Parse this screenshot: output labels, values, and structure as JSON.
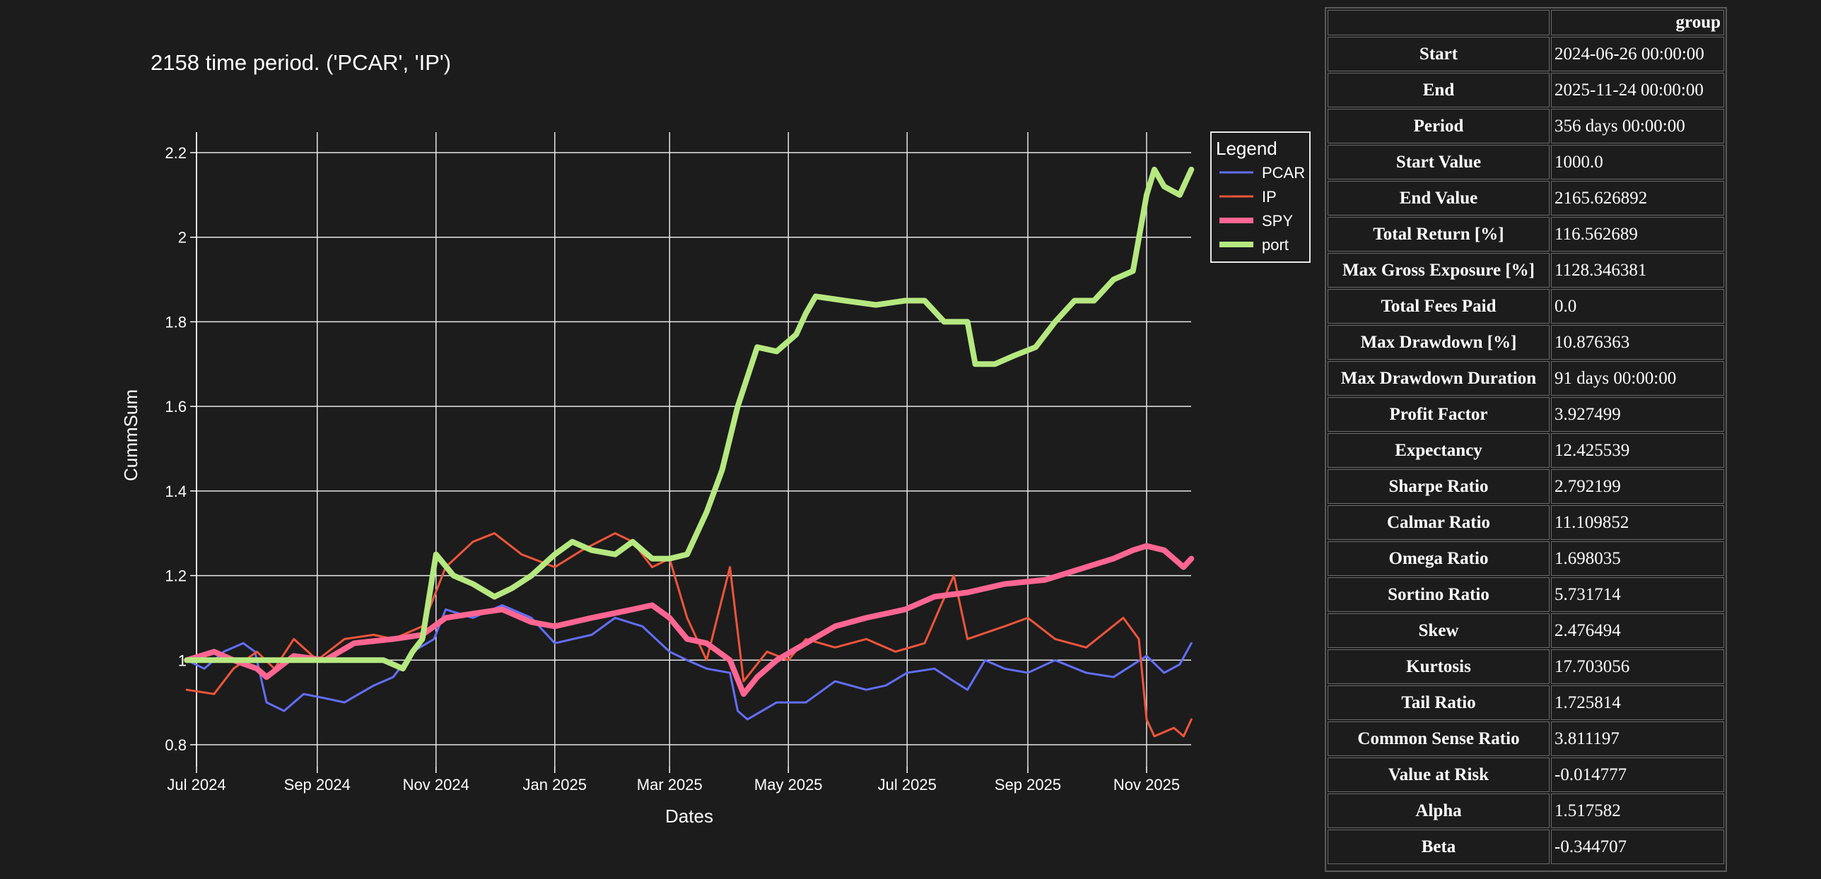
{
  "chart_data": {
    "type": "line",
    "title": "2158 time period. ('PCAR', 'IP')",
    "xlabel": "Dates",
    "ylabel": "CummSum",
    "ylim": [
      0.76,
      2.25
    ],
    "xlim": [
      "2024-07-01",
      "2025-11-30"
    ],
    "x_ticks": [
      {
        "date": "2024-07-01",
        "label": "Jul 2024"
      },
      {
        "date": "2024-09-01",
        "label": "Sep 2024"
      },
      {
        "date": "2024-11-01",
        "label": "Nov 2024"
      },
      {
        "date": "2025-01-01",
        "label": "Jan 2025"
      },
      {
        "date": "2025-03-01",
        "label": "Mar 2025"
      },
      {
        "date": "2025-05-01",
        "label": "May 2025"
      },
      {
        "date": "2025-07-01",
        "label": "Jul 2025"
      },
      {
        "date": "2025-09-01",
        "label": "Sep 2025"
      },
      {
        "date": "2025-11-01",
        "label": "Nov 2025"
      }
    ],
    "y_ticks": [
      0.8,
      1,
      1.2,
      1.4,
      1.6,
      1.8,
      2,
      2.2
    ],
    "y_tick_labels": [
      "0.8",
      "1",
      "1.2",
      "1.4",
      "1.6",
      "1.8",
      "2",
      "2.2"
    ],
    "grid": true,
    "legend": {
      "title": "Legend",
      "position": "top-right"
    },
    "series": [
      {
        "name": "PCAR",
        "color": "#636efa",
        "width": 3,
        "points": [
          [
            "2024-06-26",
            1.0
          ],
          [
            "2024-07-05",
            0.98
          ],
          [
            "2024-07-15",
            1.02
          ],
          [
            "2024-07-25",
            1.04
          ],
          [
            "2024-07-31",
            1.02
          ],
          [
            "2024-08-06",
            0.9
          ],
          [
            "2024-08-15",
            0.88
          ],
          [
            "2024-08-25",
            0.92
          ],
          [
            "2024-09-05",
            0.91
          ],
          [
            "2024-09-15",
            0.9
          ],
          [
            "2024-09-30",
            0.94
          ],
          [
            "2024-10-10",
            0.96
          ],
          [
            "2024-10-20",
            1.02
          ],
          [
            "2024-10-31",
            1.05
          ],
          [
            "2024-11-06",
            1.12
          ],
          [
            "2024-11-20",
            1.1
          ],
          [
            "2024-12-05",
            1.13
          ],
          [
            "2024-12-20",
            1.1
          ],
          [
            "2025-01-01",
            1.04
          ],
          [
            "2025-01-20",
            1.06
          ],
          [
            "2025-02-01",
            1.1
          ],
          [
            "2025-02-15",
            1.08
          ],
          [
            "2025-03-01",
            1.02
          ],
          [
            "2025-03-10",
            1.0
          ],
          [
            "2025-03-20",
            0.98
          ],
          [
            "2025-04-01",
            0.97
          ],
          [
            "2025-04-05",
            0.88
          ],
          [
            "2025-04-10",
            0.86
          ],
          [
            "2025-04-25",
            0.9
          ],
          [
            "2025-05-10",
            0.9
          ],
          [
            "2025-05-25",
            0.95
          ],
          [
            "2025-06-10",
            0.93
          ],
          [
            "2025-06-20",
            0.94
          ],
          [
            "2025-07-01",
            0.97
          ],
          [
            "2025-07-15",
            0.98
          ],
          [
            "2025-07-25",
            0.95
          ],
          [
            "2025-08-01",
            0.93
          ],
          [
            "2025-08-10",
            1.0
          ],
          [
            "2025-08-20",
            0.98
          ],
          [
            "2025-09-01",
            0.97
          ],
          [
            "2025-09-15",
            1.0
          ],
          [
            "2025-10-01",
            0.97
          ],
          [
            "2025-10-15",
            0.96
          ],
          [
            "2025-11-01",
            1.01
          ],
          [
            "2025-11-10",
            0.97
          ],
          [
            "2025-11-18",
            0.99
          ],
          [
            "2025-11-24",
            1.04
          ]
        ]
      },
      {
        "name": "IP",
        "color": "#ef553b",
        "width": 3,
        "points": [
          [
            "2024-06-26",
            0.93
          ],
          [
            "2024-07-10",
            0.92
          ],
          [
            "2024-07-20",
            0.98
          ],
          [
            "2024-08-01",
            1.02
          ],
          [
            "2024-08-10",
            0.98
          ],
          [
            "2024-08-20",
            1.05
          ],
          [
            "2024-09-01",
            1.0
          ],
          [
            "2024-09-15",
            1.05
          ],
          [
            "2024-09-30",
            1.06
          ],
          [
            "2024-10-10",
            1.05
          ],
          [
            "2024-10-25",
            1.08
          ],
          [
            "2024-11-06",
            1.22
          ],
          [
            "2024-11-20",
            1.28
          ],
          [
            "2024-12-01",
            1.3
          ],
          [
            "2024-12-15",
            1.25
          ],
          [
            "2025-01-01",
            1.22
          ],
          [
            "2025-01-15",
            1.26
          ],
          [
            "2025-02-01",
            1.3
          ],
          [
            "2025-02-10",
            1.28
          ],
          [
            "2025-02-20",
            1.22
          ],
          [
            "2025-03-01",
            1.24
          ],
          [
            "2025-03-10",
            1.1
          ],
          [
            "2025-03-20",
            1.0
          ],
          [
            "2025-04-01",
            1.22
          ],
          [
            "2025-04-08",
            0.95
          ],
          [
            "2025-04-20",
            1.02
          ],
          [
            "2025-05-01",
            1.0
          ],
          [
            "2025-05-10",
            1.05
          ],
          [
            "2025-05-25",
            1.03
          ],
          [
            "2025-06-10",
            1.05
          ],
          [
            "2025-06-25",
            1.02
          ],
          [
            "2025-07-10",
            1.04
          ],
          [
            "2025-07-25",
            1.2
          ],
          [
            "2025-08-01",
            1.05
          ],
          [
            "2025-08-20",
            1.08
          ],
          [
            "2025-09-01",
            1.1
          ],
          [
            "2025-09-15",
            1.05
          ],
          [
            "2025-10-01",
            1.03
          ],
          [
            "2025-10-20",
            1.1
          ],
          [
            "2025-10-28",
            1.05
          ],
          [
            "2025-11-01",
            0.86
          ],
          [
            "2025-11-05",
            0.82
          ],
          [
            "2025-11-15",
            0.84
          ],
          [
            "2025-11-20",
            0.82
          ],
          [
            "2025-11-24",
            0.86
          ]
        ]
      },
      {
        "name": "SPY",
        "color": "#ff6692",
        "width": 8,
        "points": [
          [
            "2024-06-26",
            1.0
          ],
          [
            "2024-07-10",
            1.02
          ],
          [
            "2024-07-20",
            1.0
          ],
          [
            "2024-08-01",
            0.98
          ],
          [
            "2024-08-06",
            0.96
          ],
          [
            "2024-08-20",
            1.01
          ],
          [
            "2024-09-05",
            1.0
          ],
          [
            "2024-09-20",
            1.04
          ],
          [
            "2024-10-10",
            1.05
          ],
          [
            "2024-10-25",
            1.06
          ],
          [
            "2024-11-06",
            1.1
          ],
          [
            "2024-11-20",
            1.11
          ],
          [
            "2024-12-05",
            1.12
          ],
          [
            "2024-12-20",
            1.09
          ],
          [
            "2025-01-01",
            1.08
          ],
          [
            "2025-01-20",
            1.1
          ],
          [
            "2025-02-10",
            1.12
          ],
          [
            "2025-02-20",
            1.13
          ],
          [
            "2025-03-01",
            1.1
          ],
          [
            "2025-03-10",
            1.05
          ],
          [
            "2025-03-20",
            1.04
          ],
          [
            "2025-04-01",
            1.0
          ],
          [
            "2025-04-08",
            0.92
          ],
          [
            "2025-04-15",
            0.96
          ],
          [
            "2025-04-25",
            1.0
          ],
          [
            "2025-05-10",
            1.04
          ],
          [
            "2025-05-25",
            1.08
          ],
          [
            "2025-06-10",
            1.1
          ],
          [
            "2025-06-30",
            1.12
          ],
          [
            "2025-07-15",
            1.15
          ],
          [
            "2025-08-01",
            1.16
          ],
          [
            "2025-08-20",
            1.18
          ],
          [
            "2025-09-10",
            1.19
          ],
          [
            "2025-10-01",
            1.22
          ],
          [
            "2025-10-15",
            1.24
          ],
          [
            "2025-10-25",
            1.26
          ],
          [
            "2025-11-01",
            1.27
          ],
          [
            "2025-11-10",
            1.26
          ],
          [
            "2025-11-20",
            1.22
          ],
          [
            "2025-11-24",
            1.24
          ]
        ]
      },
      {
        "name": "port",
        "color": "#b6e880",
        "width": 8,
        "points": [
          [
            "2024-06-26",
            1.0
          ],
          [
            "2024-07-15",
            1.0
          ],
          [
            "2024-08-15",
            1.0
          ],
          [
            "2024-09-15",
            1.0
          ],
          [
            "2024-10-05",
            1.0
          ],
          [
            "2024-10-15",
            0.98
          ],
          [
            "2024-10-20",
            1.02
          ],
          [
            "2024-10-25",
            1.05
          ],
          [
            "2024-11-01",
            1.25
          ],
          [
            "2024-11-10",
            1.2
          ],
          [
            "2024-11-20",
            1.18
          ],
          [
            "2024-12-01",
            1.15
          ],
          [
            "2024-12-10",
            1.17
          ],
          [
            "2024-12-20",
            1.2
          ],
          [
            "2025-01-01",
            1.25
          ],
          [
            "2025-01-10",
            1.28
          ],
          [
            "2025-01-20",
            1.26
          ],
          [
            "2025-02-01",
            1.25
          ],
          [
            "2025-02-10",
            1.28
          ],
          [
            "2025-02-20",
            1.24
          ],
          [
            "2025-03-01",
            1.24
          ],
          [
            "2025-03-10",
            1.25
          ],
          [
            "2025-03-20",
            1.35
          ],
          [
            "2025-03-28",
            1.45
          ],
          [
            "2025-04-05",
            1.6
          ],
          [
            "2025-04-15",
            1.74
          ],
          [
            "2025-04-25",
            1.73
          ],
          [
            "2025-05-05",
            1.77
          ],
          [
            "2025-05-10",
            1.82
          ],
          [
            "2025-05-15",
            1.86
          ],
          [
            "2025-05-30",
            1.85
          ],
          [
            "2025-06-15",
            1.84
          ],
          [
            "2025-06-30",
            1.85
          ],
          [
            "2025-07-10",
            1.85
          ],
          [
            "2025-07-20",
            1.8
          ],
          [
            "2025-08-01",
            1.8
          ],
          [
            "2025-08-05",
            1.7
          ],
          [
            "2025-08-15",
            1.7
          ],
          [
            "2025-08-25",
            1.72
          ],
          [
            "2025-09-05",
            1.74
          ],
          [
            "2025-09-15",
            1.8
          ],
          [
            "2025-09-25",
            1.85
          ],
          [
            "2025-10-05",
            1.85
          ],
          [
            "2025-10-15",
            1.9
          ],
          [
            "2025-10-25",
            1.92
          ],
          [
            "2025-11-01",
            2.1
          ],
          [
            "2025-11-05",
            2.16
          ],
          [
            "2025-11-10",
            2.12
          ],
          [
            "2025-11-18",
            2.1
          ],
          [
            "2025-11-24",
            2.16
          ]
        ]
      }
    ]
  },
  "stats_table": {
    "header": "group",
    "rows": [
      {
        "key": "Start",
        "value": "2024-06-26 00:00:00"
      },
      {
        "key": "End",
        "value": "2025-11-24 00:00:00"
      },
      {
        "key": "Period",
        "value": "356 days 00:00:00"
      },
      {
        "key": "Start Value",
        "value": "1000.0"
      },
      {
        "key": "End Value",
        "value": "2165.626892"
      },
      {
        "key": "Total Return [%]",
        "value": "116.562689"
      },
      {
        "key": "Max Gross Exposure [%]",
        "value": "1128.346381"
      },
      {
        "key": "Total Fees Paid",
        "value": "0.0"
      },
      {
        "key": "Max Drawdown [%]",
        "value": "10.876363"
      },
      {
        "key": "Max Drawdown Duration",
        "value": "91 days 00:00:00"
      },
      {
        "key": "Profit Factor",
        "value": "3.927499"
      },
      {
        "key": "Expectancy",
        "value": "12.425539"
      },
      {
        "key": "Sharpe Ratio",
        "value": "2.792199"
      },
      {
        "key": "Calmar Ratio",
        "value": "11.109852"
      },
      {
        "key": "Omega Ratio",
        "value": "1.698035"
      },
      {
        "key": "Sortino Ratio",
        "value": "5.731714"
      },
      {
        "key": "Skew",
        "value": "2.476494"
      },
      {
        "key": "Kurtosis",
        "value": "17.703056"
      },
      {
        "key": "Tail Ratio",
        "value": "1.725814"
      },
      {
        "key": "Common Sense Ratio",
        "value": "3.811197"
      },
      {
        "key": "Value at Risk",
        "value": "-0.014777"
      },
      {
        "key": "Alpha",
        "value": "1.517582"
      },
      {
        "key": "Beta",
        "value": "-0.344707"
      }
    ]
  }
}
